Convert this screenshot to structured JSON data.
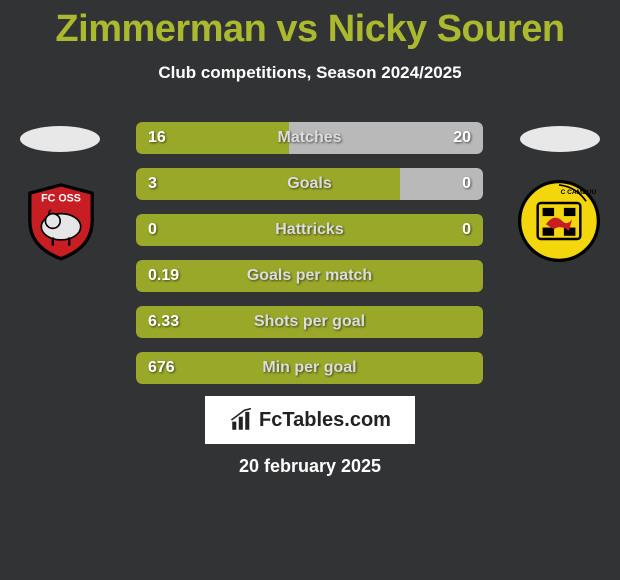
{
  "title": "Zimmerman vs Nicky Souren",
  "subtitle": "Club competitions, Season 2024/2025",
  "footer_site": "FcTables.com",
  "footer_date": "20 february 2025",
  "colors": {
    "background": "#323335",
    "title": "#abb92f",
    "text": "#ffffff",
    "stat_label": "#dddddd",
    "bar_left": "#9aa82a",
    "bar_right": "#b9b9b9",
    "footer_bg": "#ffffff",
    "footer_text": "#222222"
  },
  "fonts": {
    "title_size": 38,
    "subtitle_size": 17,
    "stat_size": 16,
    "footer_date_size": 18
  },
  "stats": [
    {
      "label": "Matches",
      "left_val": "16",
      "right_val": "20",
      "left_pct": 44,
      "right_pct": 56
    },
    {
      "label": "Goals",
      "left_val": "3",
      "right_val": "0",
      "left_pct": 76,
      "right_pct": 24
    },
    {
      "label": "Hattricks",
      "left_val": "0",
      "right_val": "0",
      "left_pct": 100,
      "right_pct": 0
    },
    {
      "label": "Goals per match",
      "left_val": "0.19",
      "right_val": "",
      "left_pct": 100,
      "right_pct": 0
    },
    {
      "label": "Shots per goal",
      "left_val": "6.33",
      "right_val": "",
      "left_pct": 100,
      "right_pct": 0
    },
    {
      "label": "Min per goal",
      "left_val": "676",
      "right_val": "",
      "left_pct": 100,
      "right_pct": 0
    }
  ],
  "team_left": {
    "name": "FC Oss",
    "badge_bg": "#c81e23",
    "badge_border": "#000000",
    "badge_text": "FC OSS",
    "animal_color": "#e6e6e6"
  },
  "team_right": {
    "name": "SC Cambuur",
    "badge_bg": "#f4d60d",
    "badge_border": "#000000",
    "animal_color": "#000000"
  }
}
